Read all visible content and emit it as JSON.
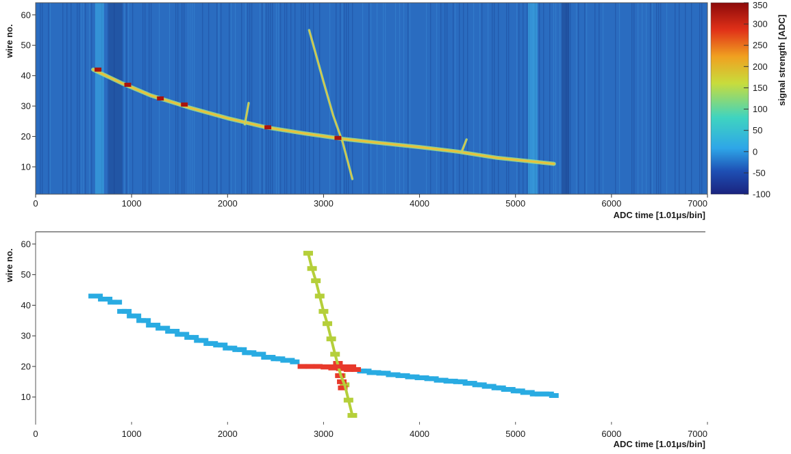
{
  "chart_data": [
    {
      "type": "heatmap",
      "title": "",
      "xlabel": "ADC time [1.01μs/bin]",
      "ylabel": "wire no.",
      "xlim": [
        0,
        7000
      ],
      "ylim": [
        1,
        64
      ],
      "x_ticks": [
        "0",
        "1000",
        "2000",
        "3000",
        "4000",
        "5000",
        "6000",
        "7000"
      ],
      "y_ticks": [
        "10",
        "20",
        "30",
        "40",
        "50",
        "60"
      ],
      "colorbar": {
        "label": "signal strength [ADC]",
        "range": [
          -100,
          350
        ],
        "ticks": [
          "350",
          "300",
          "250",
          "200",
          "150",
          "100",
          "50",
          "0",
          "-50",
          "-100"
        ],
        "colors": [
          "#1a237e",
          "#1e4fb4",
          "#2ea6e8",
          "#3fd4c0",
          "#c8dc3c",
          "#f0a020",
          "#e03018",
          "#8c0a0a"
        ]
      },
      "background_color": "#2a6cc0",
      "bright_columns_x": [
        [
          620,
          710
        ],
        [
          5130,
          5230
        ]
      ],
      "dark_columns_x": [
        [
          760,
          900
        ],
        [
          5480,
          5560
        ]
      ],
      "tracks": [
        {
          "points": [
            [
              600,
              42
            ],
            [
              900,
              37.5
            ],
            [
              1200,
              33.5
            ],
            [
              1600,
              29.5
            ],
            [
              2000,
              26
            ],
            [
              2400,
              23
            ],
            [
              2800,
              21
            ],
            [
              3200,
              19.2
            ],
            [
              3600,
              17.8
            ],
            [
              4000,
              16.5
            ],
            [
              4400,
              15
            ],
            [
              4800,
              13
            ],
            [
              5100,
              12
            ],
            [
              5400,
              11
            ]
          ]
        },
        {
          "points": [
            [
              2850,
              55
            ],
            [
              3000,
              38
            ],
            [
              3100,
              27
            ],
            [
              3200,
              18
            ],
            [
              3300,
              6
            ]
          ]
        },
        {
          "points": [
            [
              2180,
              24
            ],
            [
              2220,
              31
            ]
          ]
        },
        {
          "points": [
            [
              4440,
              15
            ],
            [
              4490,
              19
            ]
          ]
        }
      ],
      "hot_spots": [
        {
          "x": 650,
          "y": 42
        },
        {
          "x": 960,
          "y": 37
        },
        {
          "x": 1300,
          "y": 32.5
        },
        {
          "x": 1550,
          "y": 30.5
        },
        {
          "x": 2420,
          "y": 23
        },
        {
          "x": 3150,
          "y": 19.5
        }
      ]
    },
    {
      "type": "scatter",
      "title": "",
      "xlabel": "ADC time [1.01μs/bin]",
      "ylabel": "wire no.",
      "xlim": [
        0,
        7000
      ],
      "ylim": [
        1,
        64
      ],
      "x_ticks": [
        "0",
        "1000",
        "2000",
        "3000",
        "4000",
        "5000",
        "6000",
        "7000"
      ],
      "y_ticks": [
        "10",
        "20",
        "30",
        "40",
        "50",
        "60"
      ],
      "series": [
        {
          "color": "#29abe2",
          "points": [
            [
              600,
              43
            ],
            [
              700,
              42
            ],
            [
              800,
              41
            ],
            [
              900,
              38
            ],
            [
              1000,
              36.5
            ],
            [
              1100,
              35
            ],
            [
              1200,
              33.5
            ],
            [
              1300,
              32.5
            ],
            [
              1400,
              31.5
            ],
            [
              1500,
              30.5
            ],
            [
              1600,
              29.5
            ],
            [
              1700,
              28.5
            ],
            [
              1800,
              27.5
            ],
            [
              1900,
              27
            ],
            [
              2000,
              26
            ],
            [
              2100,
              25.5
            ],
            [
              2200,
              24.5
            ],
            [
              2300,
              24
            ],
            [
              2400,
              23
            ],
            [
              2500,
              22.5
            ],
            [
              2600,
              22
            ],
            [
              2700,
              21.5
            ],
            [
              3400,
              18.5
            ],
            [
              3500,
              18
            ],
            [
              3600,
              17.8
            ],
            [
              3700,
              17.3
            ],
            [
              3800,
              17
            ],
            [
              3900,
              16.6
            ],
            [
              4000,
              16.3
            ],
            [
              4100,
              16
            ],
            [
              4200,
              15.5
            ],
            [
              4300,
              15.2
            ],
            [
              4400,
              15
            ],
            [
              4500,
              14.5
            ],
            [
              4600,
              14
            ],
            [
              4700,
              13.5
            ],
            [
              4800,
              13
            ],
            [
              4900,
              12.5
            ],
            [
              5000,
              12
            ],
            [
              5100,
              11.5
            ],
            [
              5200,
              11
            ],
            [
              5300,
              11
            ],
            [
              5400,
              10.5
            ]
          ]
        },
        {
          "color": "#b5cf3a",
          "points": [
            [
              2840,
              57
            ],
            [
              2880,
              52
            ],
            [
              2920,
              48
            ],
            [
              2960,
              43
            ],
            [
              3000,
              38
            ],
            [
              3040,
              34
            ],
            [
              3080,
              29
            ],
            [
              3120,
              24
            ],
            [
              3180,
              17
            ],
            [
              3220,
              14
            ],
            [
              3260,
              9
            ],
            [
              3300,
              4
            ]
          ]
        },
        {
          "color": "#e8392b",
          "points": [
            [
              2780,
              20
            ],
            [
              2860,
              20
            ],
            [
              2940,
              20
            ],
            [
              3020,
              19.8
            ],
            [
              3100,
              19.5
            ],
            [
              3180,
              19.3
            ],
            [
              3260,
              19
            ],
            [
              3340,
              19
            ],
            [
              3150,
              21
            ],
            [
              3170,
              17
            ],
            [
              3190,
              15
            ],
            [
              3200,
              13
            ]
          ]
        }
      ]
    }
  ]
}
